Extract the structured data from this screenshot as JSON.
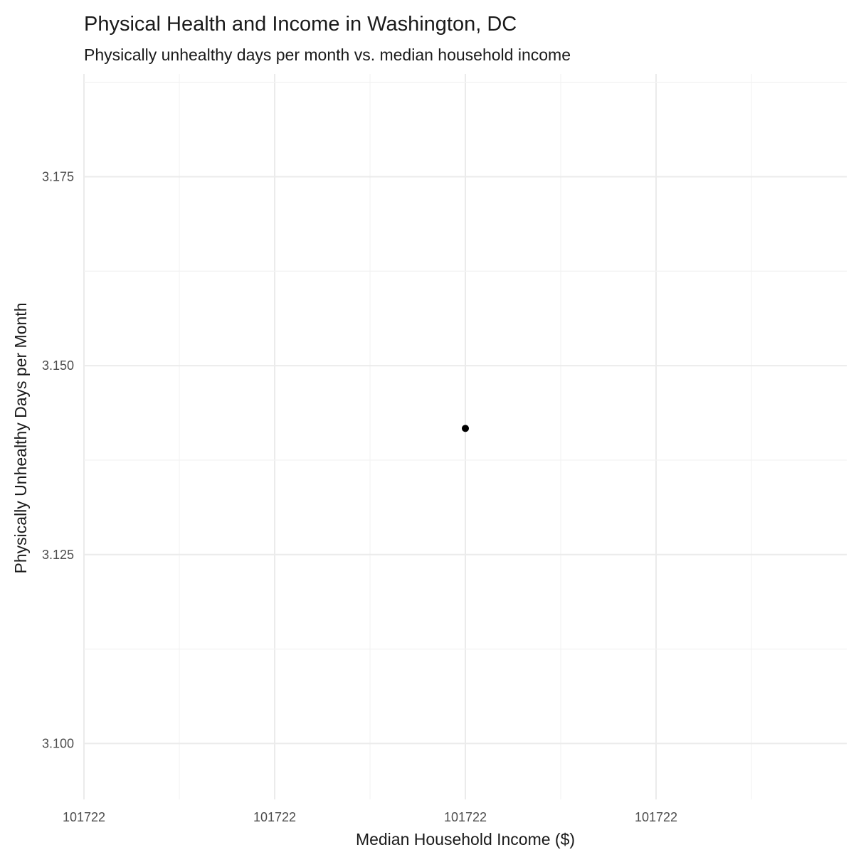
{
  "chart_data": {
    "type": "scatter",
    "title": "Physical Health and Income in Washington, DC",
    "subtitle": "Physically unhealthy days per month vs. median household income",
    "xlabel": "Median Household Income ($)",
    "ylabel": "Physically Unhealthy Days per Month",
    "x_tick_labels": [
      "101722",
      "101722",
      "101722",
      "101722"
    ],
    "y_tick_labels": [
      "3.100",
      "3.125",
      "3.150",
      "3.175"
    ],
    "y_ticks": [
      3.1,
      3.125,
      3.15,
      3.175
    ],
    "ylim": [
      3.0926,
      3.1886
    ],
    "series": [
      {
        "name": "Washington, DC",
        "x": [
          101722
        ],
        "y": [
          3.1417
        ],
        "color": "#000000"
      }
    ],
    "grid": true,
    "legend": "none"
  }
}
